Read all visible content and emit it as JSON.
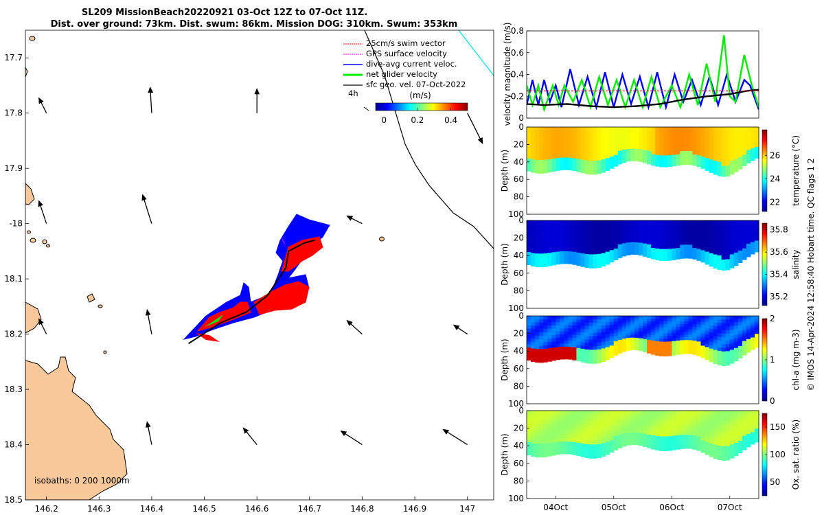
{
  "title_line1": "SL209 MissionBeach20220921 03-Oct 12Z to 07-Oct 11Z.",
  "title_line2": "Dist. over ground: 73km. Dist. swum: 86km. Mission DOG: 310km. Swum: 353km",
  "credit": "© IMOS 14-Apr-2024 12:58:40 Hobart time. QC flags 1  2",
  "colors": {
    "land": "#f9c89b",
    "swim": "#ff0000",
    "gps": "#ff00ff",
    "dive": "#0000ff",
    "net": "#00ee00",
    "geo": "#000000",
    "track": "#000000",
    "cyan": "#00e5e5"
  },
  "chart_data": [
    {
      "type": "map",
      "name": "track-map",
      "xlim": [
        146.16,
        147.05
      ],
      "ylim": [
        -18.5,
        -17.65
      ],
      "x_ticks": [
        146.2,
        146.3,
        146.4,
        146.5,
        146.6,
        146.7,
        146.8,
        146.9,
        147
      ],
      "x_tick_labels": [
        "146.2",
        "146.3",
        "146.4",
        "146.5",
        "146.6",
        "146.7",
        "146.8",
        "146.9",
        "147"
      ],
      "y_ticks": [
        -17.7,
        -17.8,
        -17.9,
        -18.0,
        -18.1,
        -18.2,
        -18.3,
        -18.4,
        -18.5
      ],
      "y_tick_labels": [
        "17.7",
        "17.8",
        "17.9",
        "-18",
        "18.1",
        "18.2",
        "18.3",
        "18.4",
        "18.5"
      ],
      "legend": [
        {
          "label": "25cm/s swim vector",
          "color": "#ff0000"
        },
        {
          "label": "GPS surface velocity",
          "color": "#ff00ff"
        },
        {
          "label": "dive-avg current veloc.",
          "color": "#0000ff"
        },
        {
          "label": "net glider velocity",
          "color": "#00ee00"
        },
        {
          "label": "sfc geo. vel. 07-Oct-2022",
          "color": "#000000"
        }
      ],
      "time_label": "4h",
      "colorbar": {
        "label": "(m/s)",
        "ticks": [
          0,
          0.2,
          0.4
        ],
        "tick_labels": [
          "0",
          "0.2",
          "0.4"
        ],
        "range": [
          -0.05,
          0.5
        ]
      },
      "isobaths_label": "isobaths: 0   200  1000m",
      "glider_track": [
        [
          146.47,
          -18.217
        ],
        [
          146.53,
          -18.18
        ],
        [
          146.58,
          -18.16
        ],
        [
          146.62,
          -18.13
        ],
        [
          146.655,
          -18.08
        ],
        [
          146.66,
          -18.05
        ],
        [
          146.69,
          -18.035
        ],
        [
          146.71,
          -18.03
        ]
      ],
      "geo_vectors": [
        {
          "lon": 146.2,
          "lat": -17.8,
          "u": -0.05,
          "v": 0.1
        },
        {
          "lon": 146.4,
          "lat": -17.8,
          "u": -0.01,
          "v": 0.17
        },
        {
          "lon": 146.6,
          "lat": -17.8,
          "u": 0.0,
          "v": 0.16
        },
        {
          "lon": 147.0,
          "lat": -17.8,
          "u": 0.1,
          "v": -0.2
        },
        {
          "lon": 146.2,
          "lat": -18.0,
          "u": -0.05,
          "v": 0.15
        },
        {
          "lon": 146.4,
          "lat": -18.0,
          "u": -0.06,
          "v": 0.19
        },
        {
          "lon": 146.8,
          "lat": -18.0,
          "u": -0.1,
          "v": 0.05
        },
        {
          "lon": 146.2,
          "lat": -18.2,
          "u": -0.05,
          "v": 0.1
        },
        {
          "lon": 146.4,
          "lat": -18.2,
          "u": -0.03,
          "v": 0.16
        },
        {
          "lon": 146.8,
          "lat": -18.2,
          "u": -0.1,
          "v": 0.09
        },
        {
          "lon": 147.0,
          "lat": -18.2,
          "u": -0.09,
          "v": 0.06
        },
        {
          "lon": 146.4,
          "lat": -18.4,
          "u": -0.03,
          "v": 0.15
        },
        {
          "lon": 146.6,
          "lat": -18.4,
          "u": -0.09,
          "v": 0.11
        },
        {
          "lon": 146.8,
          "lat": -18.4,
          "u": -0.14,
          "v": 0.09
        },
        {
          "lon": 147.0,
          "lat": -18.4,
          "u": -0.16,
          "v": 0.1
        }
      ]
    },
    {
      "type": "line",
      "name": "velocity-magnitude",
      "ylabel": "velocity magnitude (m/s)",
      "ylim": [
        0,
        0.8
      ],
      "y_ticks": [
        0,
        0.2,
        0.4,
        0.6,
        0.8
      ],
      "y_tick_labels": [
        "0",
        "0.2",
        "0.4",
        "0.6",
        "0.8"
      ],
      "xlim": [
        3.5,
        7.5
      ],
      "series": [
        {
          "color": "#0000ff",
          "values": [
            [
              3.5,
              0.12
            ],
            [
              3.6,
              0.35
            ],
            [
              3.7,
              0.12
            ],
            [
              3.8,
              0.35
            ],
            [
              3.9,
              0.15
            ],
            [
              4.0,
              0.3
            ],
            [
              4.1,
              0.1
            ],
            [
              4.25,
              0.45
            ],
            [
              4.4,
              0.12
            ],
            [
              4.55,
              0.38
            ],
            [
              4.7,
              0.1
            ],
            [
              4.85,
              0.42
            ],
            [
              5.0,
              0.1
            ],
            [
              5.15,
              0.4
            ],
            [
              5.3,
              0.13
            ],
            [
              5.45,
              0.38
            ],
            [
              5.6,
              0.1
            ],
            [
              5.75,
              0.42
            ],
            [
              5.9,
              0.1
            ],
            [
              6.05,
              0.4
            ],
            [
              6.2,
              0.15
            ],
            [
              6.35,
              0.35
            ],
            [
              6.5,
              0.12
            ],
            [
              6.65,
              0.38
            ],
            [
              6.8,
              0.12
            ],
            [
              6.95,
              0.4
            ],
            [
              7.1,
              0.15
            ],
            [
              7.25,
              0.35
            ],
            [
              7.35,
              0.3
            ],
            [
              7.5,
              0.08
            ]
          ]
        },
        {
          "color": "#00ee00",
          "values": [
            [
              3.5,
              0.3
            ],
            [
              3.6,
              0.12
            ],
            [
              3.7,
              0.3
            ],
            [
              3.8,
              0.08
            ],
            [
              3.95,
              0.3
            ],
            [
              4.05,
              0.12
            ],
            [
              4.15,
              0.3
            ],
            [
              4.3,
              0.15
            ],
            [
              4.45,
              0.35
            ],
            [
              4.6,
              0.1
            ],
            [
              4.75,
              0.38
            ],
            [
              4.9,
              0.12
            ],
            [
              5.05,
              0.35
            ],
            [
              5.2,
              0.1
            ],
            [
              5.35,
              0.35
            ],
            [
              5.5,
              0.1
            ],
            [
              5.65,
              0.38
            ],
            [
              5.8,
              0.1
            ],
            [
              6.0,
              0.3
            ],
            [
              6.15,
              0.1
            ],
            [
              6.3,
              0.4
            ],
            [
              6.45,
              0.12
            ],
            [
              6.6,
              0.5
            ],
            [
              6.75,
              0.15
            ],
            [
              6.9,
              0.76
            ],
            [
              7.0,
              0.2
            ],
            [
              7.1,
              0.15
            ],
            [
              7.25,
              0.58
            ],
            [
              7.38,
              0.3
            ],
            [
              7.5,
              0.1
            ]
          ]
        },
        {
          "color": "#000000",
          "values": [
            [
              3.5,
              0.13
            ],
            [
              3.8,
              0.12
            ],
            [
              4.2,
              0.13
            ],
            [
              4.6,
              0.11
            ],
            [
              5.0,
              0.1
            ],
            [
              5.4,
              0.11
            ],
            [
              5.8,
              0.13
            ],
            [
              6.2,
              0.17
            ],
            [
              6.6,
              0.2
            ],
            [
              7.0,
              0.22
            ],
            [
              7.3,
              0.25
            ],
            [
              7.5,
              0.26
            ]
          ]
        },
        {
          "color": "#ff0000",
          "values": [
            [
              3.5,
              0.25
            ],
            [
              7.5,
              0.25
            ]
          ]
        }
      ]
    },
    {
      "type": "heatmap",
      "name": "temperature-section",
      "ylabel": "Depth (m)",
      "clabel": "temperature (°C)",
      "ylim": [
        0,
        100
      ],
      "y_ticks": [
        0,
        20,
        40,
        60,
        80,
        100
      ],
      "y_tick_labels": [
        "0",
        "20",
        "40",
        "60",
        "80",
        "100"
      ],
      "c_ticks": [
        22,
        24,
        26
      ],
      "c_tick_labels": [
        "22",
        "24",
        "26"
      ],
      "crange": [
        21.2,
        28.2
      ]
    },
    {
      "type": "heatmap",
      "name": "salinity-section",
      "ylabel": "Depth (m)",
      "clabel": "salinity",
      "ylim": [
        0,
        100
      ],
      "y_ticks": [
        0,
        20,
        40,
        60,
        80,
        100
      ],
      "y_tick_labels": [
        "0",
        "20",
        "40",
        "60",
        "80",
        "100"
      ],
      "c_ticks": [
        35.2,
        35.4,
        35.6,
        35.8
      ],
      "c_tick_labels": [
        "35.2",
        "35.4",
        "35.6",
        "35.8"
      ],
      "crange": [
        35.12,
        35.86
      ]
    },
    {
      "type": "heatmap",
      "name": "chla-section",
      "ylabel": "Depth (m)",
      "clabel": "chl-a (mg m-3)",
      "ylim": [
        0,
        100
      ],
      "y_ticks": [
        0,
        20,
        40,
        60,
        80,
        100
      ],
      "y_tick_labels": [
        "0",
        "20",
        "40",
        "60",
        "80",
        "100"
      ],
      "c_ticks": [
        0,
        1,
        2
      ],
      "c_tick_labels": [
        "0",
        "1",
        "2"
      ],
      "crange": [
        0,
        2
      ]
    },
    {
      "type": "heatmap",
      "name": "oxygen-section",
      "ylabel": "Depth (m)",
      "clabel": "Ox. sat. ratio (%)",
      "ylim": [
        0,
        100
      ],
      "y_ticks": [
        0,
        20,
        40,
        60,
        80,
        100
      ],
      "y_tick_labels": [
        "0",
        "20",
        "40",
        "60",
        "80",
        "100"
      ],
      "c_ticks": [
        50,
        100,
        150
      ],
      "c_tick_labels": [
        "50",
        "100",
        "150"
      ],
      "crange": [
        25,
        175
      ],
      "x_tick_labels": [
        "04Oct",
        "05Oct",
        "06Oct",
        "07Oct"
      ]
    }
  ]
}
